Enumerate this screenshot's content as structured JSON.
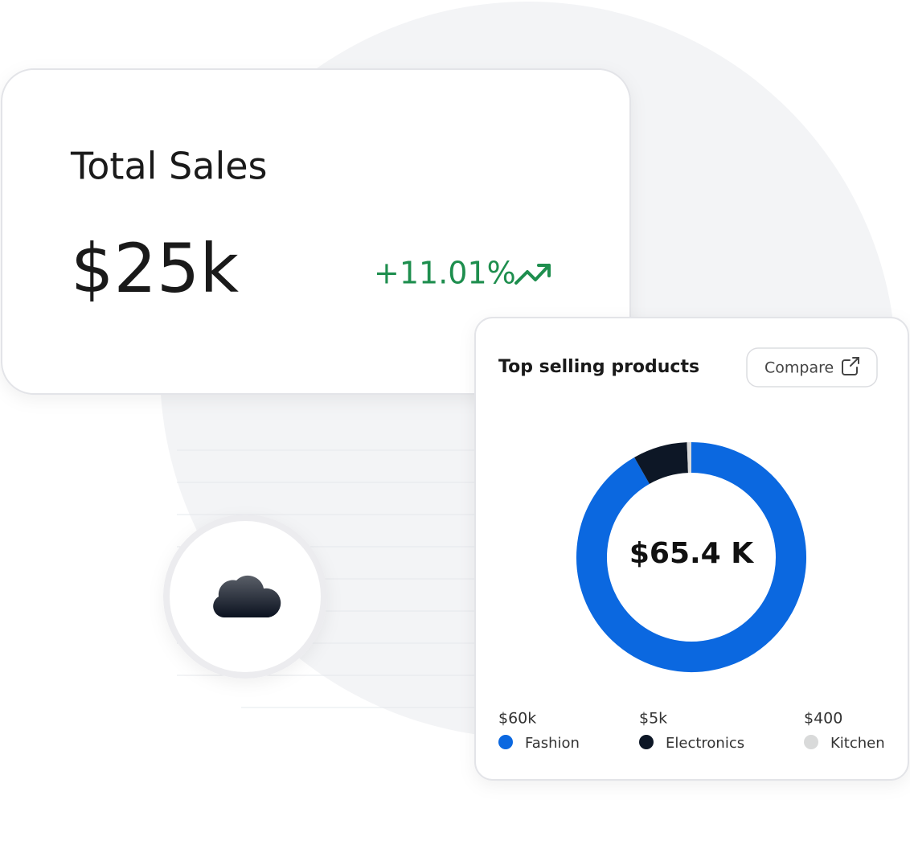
{
  "sales_card": {
    "title": "Total Sales",
    "value": "$25k",
    "change": "+11.01%"
  },
  "products_card": {
    "title": "Top selling products",
    "button": "Compare",
    "chart_data": {
      "type": "pie",
      "donut": true,
      "center_label": "$65.4 K",
      "categories": [
        "Fashion",
        "Electronics",
        "Kitchen"
      ],
      "values": [
        60000,
        5000,
        400
      ],
      "value_labels": [
        "$60k",
        "$5k",
        "$400"
      ],
      "colors": [
        "#0b68e0",
        "#0d1726",
        "#d9dada"
      ]
    }
  }
}
